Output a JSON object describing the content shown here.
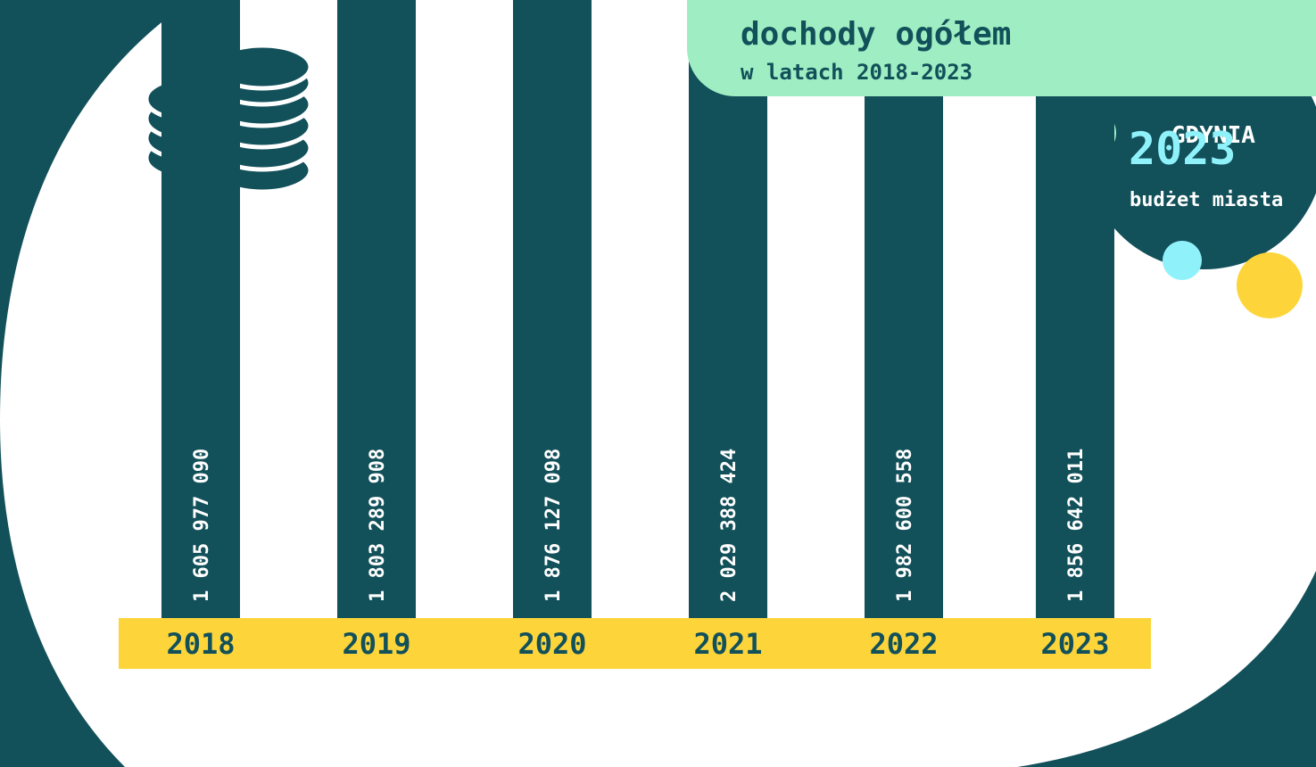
{
  "header": {
    "title": "dochody ogółem",
    "subtitle": "w latach 2018-2023"
  },
  "badge": {
    "city": "GDYNIA",
    "year": "2023",
    "label": "budżet miasta"
  },
  "icons": {
    "coins": "coin-stack-icon"
  },
  "colors": {
    "background": "#12505a",
    "bar": "#12505a",
    "axis_band": "#fdd53b",
    "title_band": "#9feec3",
    "accent_cyan": "#8ff2fb",
    "accent_yellow": "#fdd53b",
    "accent_mint": "#9feec3"
  },
  "chart_data": {
    "type": "bar",
    "title": "dochody ogółem",
    "subtitle": "w latach 2018-2023",
    "categories": [
      "2018",
      "2019",
      "2020",
      "2021",
      "2022",
      "2023"
    ],
    "values": [
      1605977090,
      1803289908,
      1876127098,
      2029388424,
      1982600558,
      1856642011
    ],
    "value_labels": [
      "1 605 977 090",
      "1 803 289 908",
      "1 876 127 098",
      "2 029 388 424",
      "1 982 600 558",
      "1 856 642 011"
    ],
    "xlabel": "",
    "ylabel": "",
    "ylim": [
      0,
      2500000000
    ],
    "grid": false
  }
}
